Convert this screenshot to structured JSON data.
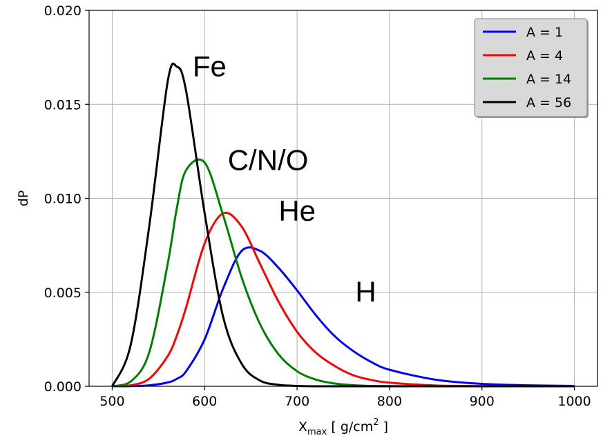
{
  "chart_data": {
    "type": "line",
    "title": "",
    "xlabel": {
      "main": "X",
      "sub": "max",
      "unit": " [ g/cm",
      "sup": "2",
      "close": " ]"
    },
    "ylabel": "dP",
    "xlim": [
      475,
      1025
    ],
    "ylim": [
      0,
      0.02
    ],
    "xticks": [
      500,
      600,
      700,
      800,
      900,
      1000
    ],
    "xtick_labels": [
      "500",
      "600",
      "700",
      "800",
      "900",
      "1000"
    ],
    "yticks": [
      0,
      0.005,
      0.01,
      0.015,
      0.02
    ],
    "ytick_labels": [
      "0.000",
      "0.005",
      "0.010",
      "0.015",
      "0.020"
    ],
    "grid": true,
    "legend_position": "top-right",
    "x": [
      500,
      520,
      540,
      560,
      570,
      580,
      600,
      620,
      640,
      660,
      680,
      700,
      720,
      740,
      760,
      780,
      800,
      850,
      900,
      950,
      1000
    ],
    "series": [
      {
        "name": "A = 1",
        "color": "#0000ff",
        "values": [
          0.0,
          1e-05,
          5e-05,
          0.0002,
          0.0004,
          0.0008,
          0.0025,
          0.0052,
          0.0072,
          0.0072,
          0.0063,
          0.0051,
          0.0038,
          0.0027,
          0.0019,
          0.0013,
          0.00088,
          0.00035,
          0.00013,
          5e-05,
          2e-05
        ]
      },
      {
        "name": "A = 4",
        "color": "#ff0000",
        "values": [
          0.0,
          5e-05,
          0.0004,
          0.0016,
          0.0027,
          0.0042,
          0.0076,
          0.0092,
          0.0085,
          0.0065,
          0.0045,
          0.0029,
          0.0018,
          0.0011,
          0.0006,
          0.00034,
          0.00019,
          4e-05,
          1e-05,
          0.0,
          0.0
        ]
      },
      {
        "name": "A = 14",
        "color": "#008000",
        "values": [
          0.0,
          0.00025,
          0.0018,
          0.0065,
          0.0095,
          0.0115,
          0.0119,
          0.0091,
          0.0058,
          0.0033,
          0.0017,
          0.0008,
          0.00036,
          0.00015,
          6e-05,
          2e-05,
          1e-05,
          0.0,
          0.0,
          0.0,
          0.0
        ]
      },
      {
        "name": "A = 56",
        "color": "#000000",
        "values": [
          0.0,
          0.0022,
          0.0085,
          0.0162,
          0.017,
          0.0157,
          0.0092,
          0.0037,
          0.0012,
          0.0003,
          8e-05,
          2e-05,
          0.0,
          0.0,
          0.0,
          0.0,
          0.0,
          0.0,
          0.0,
          0.0,
          0.0
        ]
      }
    ],
    "annotations": [
      {
        "text": "Fe",
        "x": 587,
        "y": 0.0165
      },
      {
        "text": "C/N/O",
        "x": 625,
        "y": 0.0115
      },
      {
        "text": "He",
        "x": 680,
        "y": 0.0088
      },
      {
        "text": "H",
        "x": 763,
        "y": 0.0045
      }
    ]
  }
}
